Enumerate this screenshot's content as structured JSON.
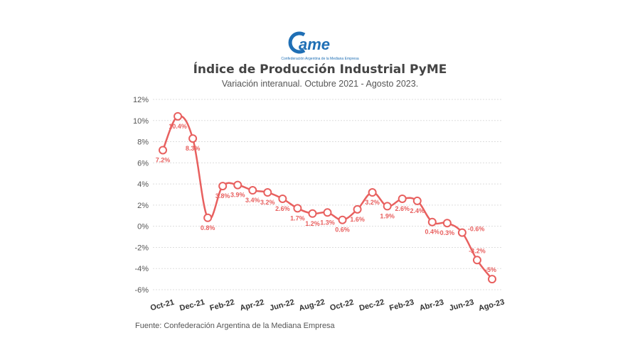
{
  "logo": {
    "text": "ame",
    "tagline": "Confederación Argentina de la Mediana Empresa",
    "color": "#1f6fb5"
  },
  "chart_data": {
    "type": "line",
    "title": "Índice de Producción Industrial PyME",
    "subtitle": "Variación interanual. Octubre 2021 - Agosto 2023.",
    "x": [
      "Oct-21",
      "Nov-21",
      "Dec-21",
      "Jan-22",
      "Feb-22",
      "Mar-22",
      "Apr-22",
      "May-22",
      "Jun-22",
      "Jul-22",
      "Aug-22",
      "Sep-22",
      "Oct-22",
      "Nov-22",
      "Dec-22",
      "Jan-23",
      "Feb-23",
      "Mar-23",
      "Abr-23",
      "May-23",
      "Jun-23",
      "Jul-23",
      "Ago-23"
    ],
    "tick_labels": [
      "Oct-21",
      "Dec-21",
      "Feb-22",
      "Apr-22",
      "Jun-22",
      "Aug-22",
      "Oct-22",
      "Dec-22",
      "Feb-23",
      "Abr-23",
      "Jun-23",
      "Ago-23"
    ],
    "series": [
      {
        "values": [
          7.2,
          10.4,
          8.3,
          0.8,
          3.8,
          3.9,
          3.4,
          3.2,
          2.6,
          1.7,
          1.2,
          1.3,
          0.6,
          1.6,
          3.2,
          1.9,
          2.6,
          2.4,
          0.4,
          0.3,
          -0.6,
          -3.2,
          -5
        ],
        "labels": [
          "7.2%",
          "10.4%",
          "8.3%",
          "0.8%",
          "3.8%",
          "3.9%",
          "3.4%",
          "3.2%",
          "2.6%",
          "1.7%",
          "1.2%",
          "1.3%",
          "0.6%",
          "1.6%",
          "3.2%",
          "1.9%",
          "2.6%",
          "2.4%",
          "0.4%",
          "0.3%",
          "-0.6%",
          "-3.2%",
          "-5%"
        ],
        "color": "#e8605f"
      }
    ],
    "y_ticks": [
      "12%",
      "10%",
      "8%",
      "6%",
      "4%",
      "2%",
      "0%",
      "-2%",
      "-4%",
      "-6%"
    ],
    "ylim": [
      -6,
      12
    ],
    "grid": true,
    "xlabel": "",
    "ylabel": ""
  },
  "footer": {
    "source": "Fuente: Confederación Argentina de la Mediana Empresa"
  }
}
